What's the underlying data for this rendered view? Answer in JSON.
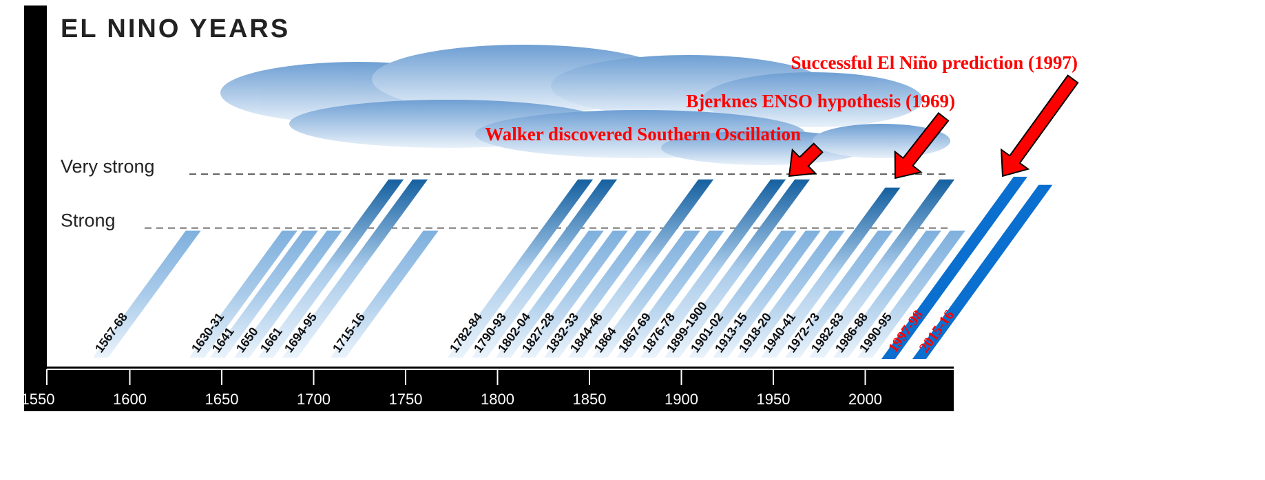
{
  "chart_data": {
    "type": "bar",
    "title": "EL NINO YEARS",
    "categories": [
      "1567-68",
      "1630-31",
      "1641",
      "1650",
      "1661",
      "1694-95",
      "1715-16",
      "1782-84",
      "1790-93",
      "1802-04",
      "1827-28",
      "1832-33",
      "1844-46",
      "1864",
      "1867-69",
      "1876-78",
      "1899-1900",
      "1901-02",
      "1913-15",
      "1918-20",
      "1940-41",
      "1972-73",
      "1982-83",
      "1986-88",
      "1990-95",
      "1997-98",
      "2015-16"
    ],
    "values": [
      2.35,
      2.35,
      2.35,
      2.35,
      3.3,
      3.3,
      2.35,
      3.3,
      3.3,
      2.35,
      2.35,
      2.35,
      3.3,
      2.35,
      2.35,
      3.3,
      3.3,
      2.35,
      2.35,
      2.35,
      3.15,
      2.35,
      3.3,
      2.35,
      2.35,
      3.35,
      3.2
    ],
    "colors": [
      "#7fb0dd",
      "#7fb0dd",
      "#7fb0dd",
      "#7fb0dd",
      "#1560a0",
      "#1560a0",
      "#7fb0dd",
      "#1560a0",
      "#1560a0",
      "#7fb0dd",
      "#7fb0dd",
      "#7fb0dd",
      "#1560a0",
      "#7fb0dd",
      "#7fb0dd",
      "#1560a0",
      "#1560a0",
      "#7fb0dd",
      "#7fb0dd",
      "#7fb0dd",
      "#1560a0",
      "#7fb0dd",
      "#1560a0",
      "#7fb0dd",
      "#7fb0dd",
      "#0a6fcf",
      "#0a6fcf"
    ],
    "label_colors": [
      "#111",
      "#111",
      "#111",
      "#111",
      "#111",
      "#111",
      "#111",
      "#111",
      "#111",
      "#111",
      "#111",
      "#111",
      "#111",
      "#111",
      "#111",
      "#111",
      "#111",
      "#111",
      "#111",
      "#111",
      "#111",
      "#111",
      "#111",
      "#111",
      "#111",
      "#ff0000",
      "#ff0000"
    ],
    "ylim": [
      0,
      3.6
    ],
    "yticks": [
      {
        "value": 2.4,
        "label": "Strong"
      },
      {
        "value": 3.4,
        "label": "Very strong"
      }
    ],
    "xlim": [
      1550,
      2050
    ],
    "xticks": [
      1550,
      1600,
      1650,
      1700,
      1750,
      1800,
      1850,
      1900,
      1950,
      2000
    ],
    "annotations": [
      "Successful El Niño prediction (1997)",
      "Bjerknes ENSO hypothesis (1969)",
      "Walker discovered Southern Oscillation"
    ]
  }
}
